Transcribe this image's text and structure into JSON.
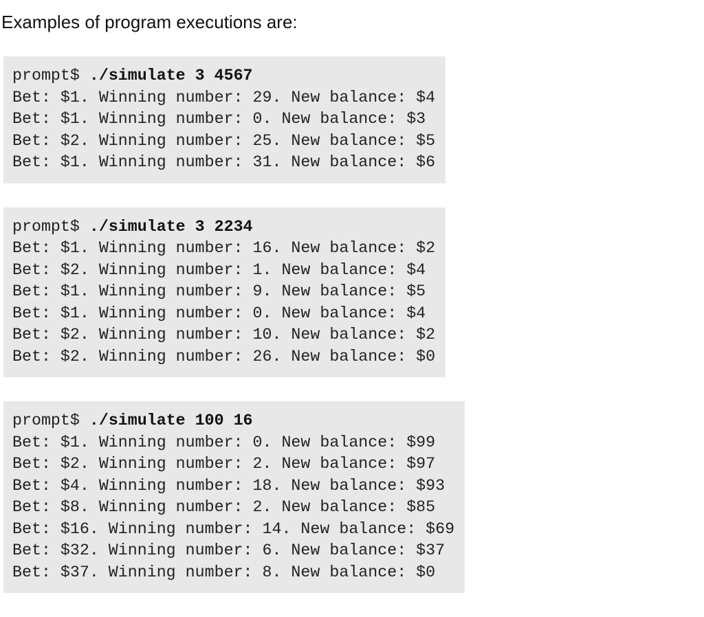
{
  "intro": "Examples of program executions are:",
  "examples": [
    {
      "prompt": "prompt$",
      "command": "./simulate 3 4567",
      "lines": [
        "Bet: $1. Winning number: 29. New balance: $4",
        "Bet: $1. Winning number: 0. New balance: $3",
        "Bet: $2. Winning number: 25. New balance: $5",
        "Bet: $1. Winning number: 31. New balance: $6"
      ]
    },
    {
      "prompt": "prompt$",
      "command": "./simulate 3 2234",
      "lines": [
        "Bet: $1. Winning number: 16. New balance: $2",
        "Bet: $2. Winning number: 1. New balance: $4",
        "Bet: $1. Winning number: 9. New balance: $5",
        "Bet: $1. Winning number: 0. New balance: $4",
        "Bet: $2. Winning number: 10. New balance: $2",
        "Bet: $2. Winning number: 26. New balance: $0"
      ]
    },
    {
      "prompt": "prompt$",
      "command": "./simulate 100 16",
      "lines": [
        "Bet: $1. Winning number: 0. New balance: $99",
        "Bet: $2. Winning number: 2. New balance: $97",
        "Bet: $4. Winning number: 18. New balance: $93",
        "Bet: $8. Winning number: 2. New balance: $85",
        "Bet: $16. Winning number: 14. New balance: $69",
        "Bet: $32. Winning number: 6. New balance: $37",
        "Bet: $37. Winning number: 8. New balance: $0"
      ]
    }
  ]
}
